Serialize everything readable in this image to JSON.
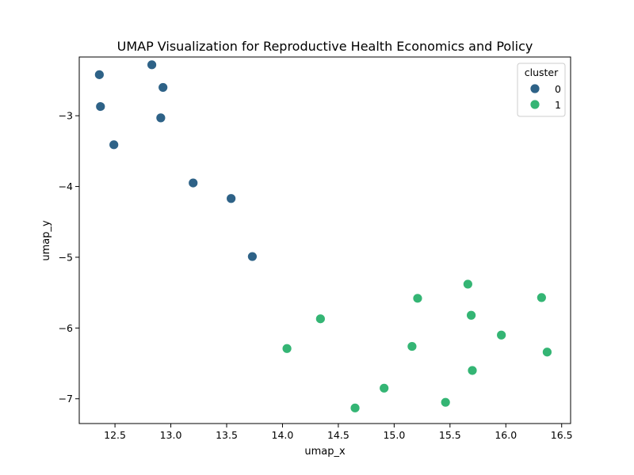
{
  "chart_data": {
    "type": "scatter",
    "title": "UMAP Visualization for Reproductive Health Economics and Policy",
    "xlabel": "umap_x",
    "ylabel": "umap_y",
    "xlim": [
      12.18,
      16.58
    ],
    "ylim": [
      -7.35,
      -2.17
    ],
    "xticks": [
      12.5,
      13.0,
      13.5,
      14.0,
      14.5,
      15.0,
      15.5,
      16.0,
      16.5
    ],
    "xtick_labels": [
      "12.5",
      "13.0",
      "13.5",
      "14.0",
      "14.5",
      "15.0",
      "15.5",
      "16.0",
      "16.5"
    ],
    "yticks": [
      -3,
      -4,
      -5,
      -6,
      -7
    ],
    "ytick_labels": [
      "−3",
      "−4",
      "−5",
      "−6",
      "−7"
    ],
    "grid": false,
    "legend": {
      "title": "cluster",
      "placement": "top-right",
      "entries": [
        "0",
        "1"
      ]
    },
    "colors": [
      "#2e6287",
      "#34b574"
    ],
    "series": [
      {
        "name": "0",
        "points": [
          {
            "x": 12.36,
            "y": -2.42
          },
          {
            "x": 12.83,
            "y": -2.28
          },
          {
            "x": 12.93,
            "y": -2.6
          },
          {
            "x": 12.37,
            "y": -2.87
          },
          {
            "x": 12.91,
            "y": -3.03
          },
          {
            "x": 12.49,
            "y": -3.41
          },
          {
            "x": 13.2,
            "y": -3.95
          },
          {
            "x": 13.54,
            "y": -4.17
          },
          {
            "x": 13.73,
            "y": -4.99
          }
        ]
      },
      {
        "name": "1",
        "points": [
          {
            "x": 15.66,
            "y": -5.38
          },
          {
            "x": 16.32,
            "y": -5.57
          },
          {
            "x": 15.21,
            "y": -5.58
          },
          {
            "x": 15.69,
            "y": -5.82
          },
          {
            "x": 14.34,
            "y": -5.87
          },
          {
            "x": 15.96,
            "y": -6.1
          },
          {
            "x": 15.16,
            "y": -6.26
          },
          {
            "x": 14.04,
            "y": -6.29
          },
          {
            "x": 16.37,
            "y": -6.34
          },
          {
            "x": 15.7,
            "y": -6.6
          },
          {
            "x": 14.91,
            "y": -6.85
          },
          {
            "x": 15.46,
            "y": -7.05
          },
          {
            "x": 14.65,
            "y": -7.13
          }
        ]
      }
    ]
  }
}
